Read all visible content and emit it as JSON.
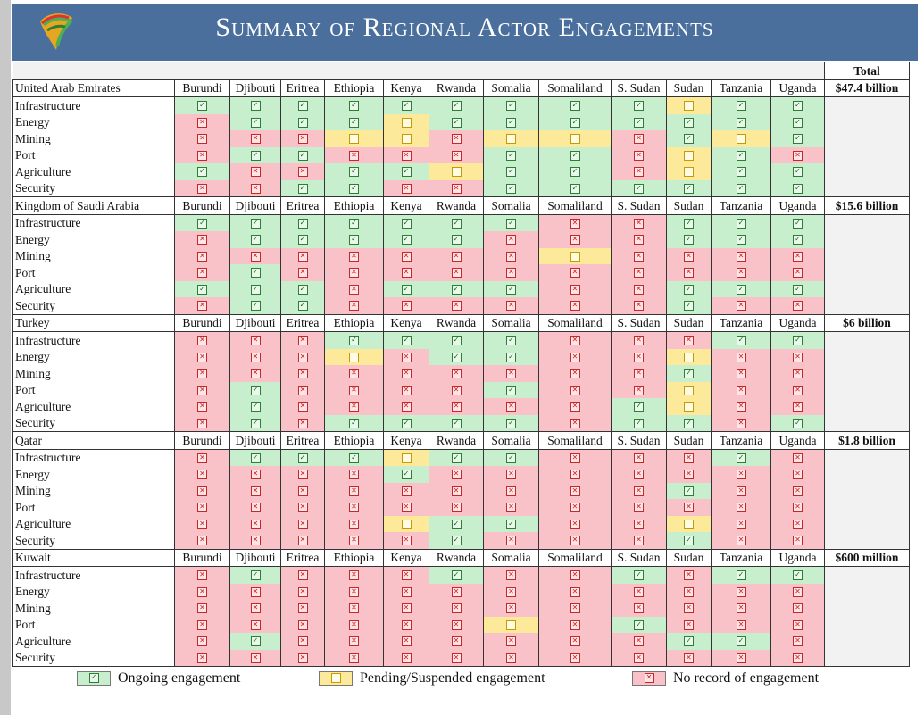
{
  "header": {
    "title": "Summary of Regional Actor Engagements"
  },
  "legend": {
    "ongoing": "Ongoing engagement",
    "pending": "Pending/Suspended engagement",
    "none": "No record of engagement"
  },
  "colors": {
    "header_bg": "#4a6f9d",
    "ongoing": "#c8efcd",
    "pending": "#fde99a",
    "none": "#f8c2c8"
  },
  "icons": {
    "ongoing": "check-box-icon",
    "pending": "empty-box-icon",
    "none": "x-box-icon"
  },
  "chart_data": {
    "type": "table",
    "title": "Summary of Regional Actor Engagements",
    "total_label": "Total",
    "status_codes": {
      "Y": "Ongoing engagement",
      "P": "Pending/Suspended engagement",
      "N": "No record of engagement"
    },
    "countries": [
      "Burundi",
      "Djibouti",
      "Eritrea",
      "Ethiopia",
      "Kenya",
      "Rwanda",
      "Somalia",
      "Somaliland",
      "S. Sudan",
      "Sudan",
      "Tanzania",
      "Uganda"
    ],
    "actors": [
      {
        "name": "United Arab Emirates",
        "total": "$47.4 billion",
        "rows": [
          {
            "sector": "Infrastructure",
            "values": [
              "Y",
              "Y",
              "Y",
              "Y",
              "Y",
              "Y",
              "Y",
              "Y",
              "Y",
              "P",
              "Y",
              "Y"
            ]
          },
          {
            "sector": "Energy",
            "values": [
              "N",
              "Y",
              "Y",
              "Y",
              "P",
              "Y",
              "Y",
              "Y",
              "Y",
              "Y",
              "Y",
              "Y"
            ]
          },
          {
            "sector": "Mining",
            "values": [
              "N",
              "N",
              "N",
              "P",
              "P",
              "N",
              "P",
              "P",
              "N",
              "Y",
              "P",
              "Y"
            ]
          },
          {
            "sector": "Port",
            "values": [
              "N",
              "Y",
              "Y",
              "N",
              "N",
              "N",
              "Y",
              "Y",
              "N",
              "P",
              "Y",
              "N"
            ]
          },
          {
            "sector": "Agriculture",
            "values": [
              "Y",
              "N",
              "N",
              "Y",
              "Y",
              "P",
              "Y",
              "Y",
              "N",
              "P",
              "Y",
              "Y"
            ]
          },
          {
            "sector": "Security",
            "values": [
              "N",
              "N",
              "Y",
              "Y",
              "N",
              "N",
              "Y",
              "Y",
              "Y",
              "Y",
              "Y",
              "Y"
            ]
          }
        ]
      },
      {
        "name": "Kingdom of Saudi Arabia",
        "total": "$15.6 billion",
        "rows": [
          {
            "sector": "Infrastructure",
            "values": [
              "Y",
              "Y",
              "Y",
              "Y",
              "Y",
              "Y",
              "Y",
              "N",
              "N",
              "Y",
              "Y",
              "Y"
            ]
          },
          {
            "sector": "Energy",
            "values": [
              "N",
              "Y",
              "Y",
              "Y",
              "Y",
              "Y",
              "N",
              "N",
              "N",
              "Y",
              "Y",
              "Y"
            ]
          },
          {
            "sector": "Mining",
            "values": [
              "N",
              "N",
              "N",
              "N",
              "N",
              "N",
              "N",
              "P",
              "N",
              "N",
              "N",
              "N"
            ]
          },
          {
            "sector": "Port",
            "values": [
              "N",
              "Y",
              "N",
              "N",
              "N",
              "N",
              "N",
              "N",
              "N",
              "N",
              "N",
              "N"
            ]
          },
          {
            "sector": "Agriculture",
            "values": [
              "Y",
              "Y",
              "Y",
              "N",
              "Y",
              "Y",
              "Y",
              "N",
              "N",
              "Y",
              "Y",
              "Y"
            ]
          },
          {
            "sector": "Security",
            "values": [
              "N",
              "Y",
              "Y",
              "N",
              "N",
              "N",
              "N",
              "N",
              "N",
              "Y",
              "N",
              "N"
            ]
          }
        ]
      },
      {
        "name": "Turkey",
        "total": "$6 billion",
        "rows": [
          {
            "sector": "Infrastructure",
            "values": [
              "N",
              "N",
              "N",
              "Y",
              "Y",
              "Y",
              "Y",
              "N",
              "N",
              "N",
              "Y",
              "Y"
            ]
          },
          {
            "sector": "Energy",
            "values": [
              "N",
              "N",
              "N",
              "P",
              "N",
              "Y",
              "Y",
              "N",
              "N",
              "P",
              "N",
              "N"
            ]
          },
          {
            "sector": "Mining",
            "values": [
              "N",
              "N",
              "N",
              "N",
              "N",
              "N",
              "N",
              "N",
              "N",
              "Y",
              "N",
              "N"
            ]
          },
          {
            "sector": "Port",
            "values": [
              "N",
              "Y",
              "N",
              "N",
              "N",
              "N",
              "Y",
              "N",
              "N",
              "P",
              "N",
              "N"
            ]
          },
          {
            "sector": "Agriculture",
            "values": [
              "N",
              "Y",
              "N",
              "N",
              "N",
              "N",
              "N",
              "N",
              "Y",
              "P",
              "N",
              "N"
            ]
          },
          {
            "sector": "Security",
            "values": [
              "N",
              "Y",
              "N",
              "Y",
              "Y",
              "Y",
              "Y",
              "N",
              "Y",
              "Y",
              "N",
              "Y"
            ]
          }
        ]
      },
      {
        "name": "Qatar",
        "total": "$1.8 billion",
        "rows": [
          {
            "sector": "Infrastructure",
            "values": [
              "N",
              "Y",
              "Y",
              "Y",
              "P",
              "Y",
              "Y",
              "N",
              "N",
              "N",
              "Y",
              "N"
            ]
          },
          {
            "sector": "Energy",
            "values": [
              "N",
              "N",
              "N",
              "N",
              "Y",
              "N",
              "N",
              "N",
              "N",
              "N",
              "N",
              "N"
            ]
          },
          {
            "sector": "Mining",
            "values": [
              "N",
              "N",
              "N",
              "N",
              "N",
              "N",
              "N",
              "N",
              "N",
              "Y",
              "N",
              "N"
            ]
          },
          {
            "sector": "Port",
            "values": [
              "N",
              "N",
              "N",
              "N",
              "N",
              "N",
              "N",
              "N",
              "N",
              "N",
              "N",
              "N"
            ]
          },
          {
            "sector": "Agriculture",
            "values": [
              "N",
              "N",
              "N",
              "N",
              "P",
              "Y",
              "Y",
              "N",
              "N",
              "P",
              "N",
              "N"
            ]
          },
          {
            "sector": "Security",
            "values": [
              "N",
              "N",
              "N",
              "N",
              "N",
              "Y",
              "N",
              "N",
              "N",
              "Y",
              "N",
              "N"
            ]
          }
        ]
      },
      {
        "name": "Kuwait",
        "total": "$600 million",
        "rows": [
          {
            "sector": "Infrastructure",
            "values": [
              "N",
              "Y",
              "N",
              "N",
              "N",
              "Y",
              "N",
              "N",
              "Y",
              "N",
              "Y",
              "Y"
            ]
          },
          {
            "sector": "Energy",
            "values": [
              "N",
              "N",
              "N",
              "N",
              "N",
              "N",
              "N",
              "N",
              "N",
              "N",
              "N",
              "N"
            ]
          },
          {
            "sector": "Mining",
            "values": [
              "N",
              "N",
              "N",
              "N",
              "N",
              "N",
              "N",
              "N",
              "N",
              "N",
              "N",
              "N"
            ]
          },
          {
            "sector": "Port",
            "values": [
              "N",
              "N",
              "N",
              "N",
              "N",
              "N",
              "P",
              "N",
              "Y",
              "N",
              "N",
              "N"
            ]
          },
          {
            "sector": "Agriculture",
            "values": [
              "N",
              "Y",
              "N",
              "N",
              "N",
              "N",
              "N",
              "N",
              "N",
              "Y",
              "Y",
              "N"
            ]
          },
          {
            "sector": "Security",
            "values": [
              "N",
              "N",
              "N",
              "N",
              "N",
              "N",
              "N",
              "N",
              "N",
              "N",
              "N",
              "N"
            ]
          }
        ]
      }
    ]
  }
}
